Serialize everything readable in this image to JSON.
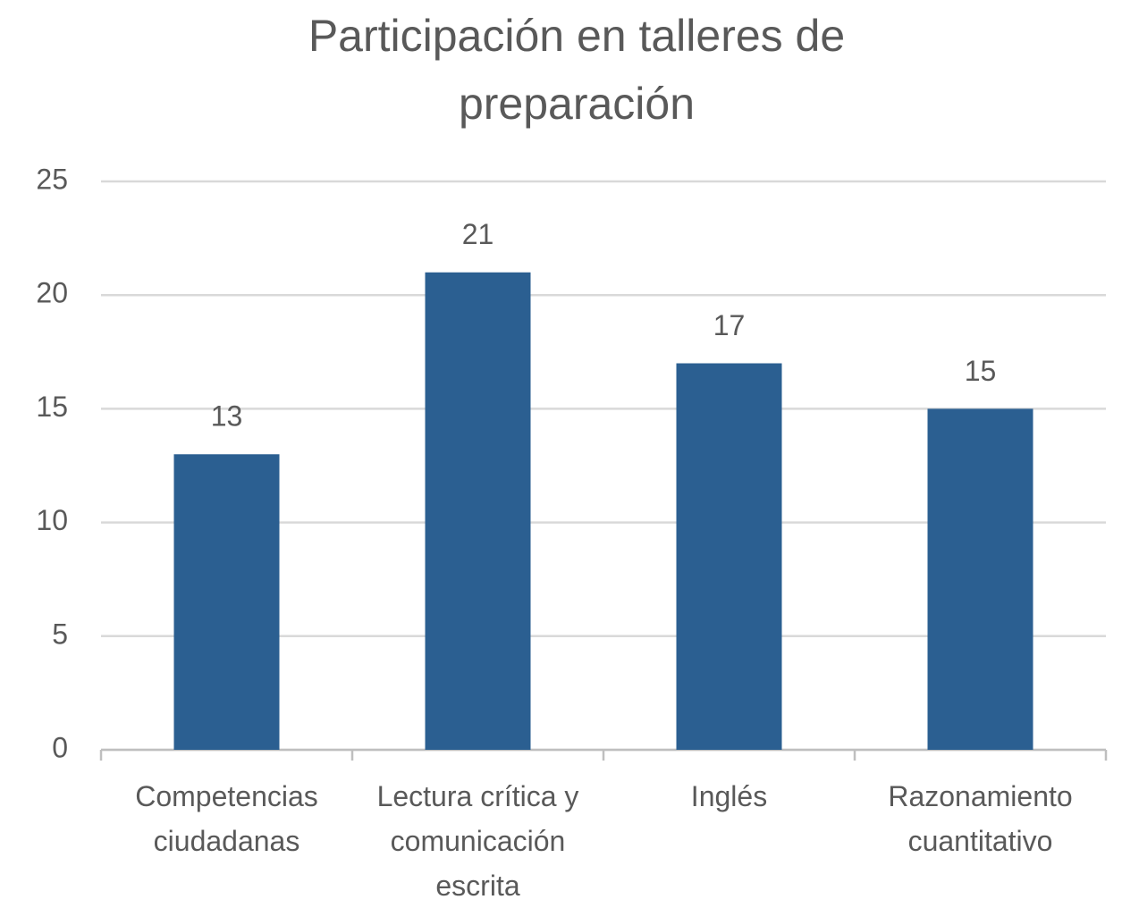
{
  "chart_data": {
    "type": "bar",
    "title": "Participación en talleres de preparación",
    "categories": [
      "Competencias ciudadanas",
      "Lectura crítica y comunicación escrita",
      "Inglés",
      "Razonamiento cuantitativo"
    ],
    "values": [
      13,
      21,
      17,
      15
    ],
    "color": "#2b5f91",
    "ylim": [
      0,
      25
    ],
    "yticks": [
      0,
      5,
      10,
      15,
      20,
      25
    ],
    "grid": true
  }
}
